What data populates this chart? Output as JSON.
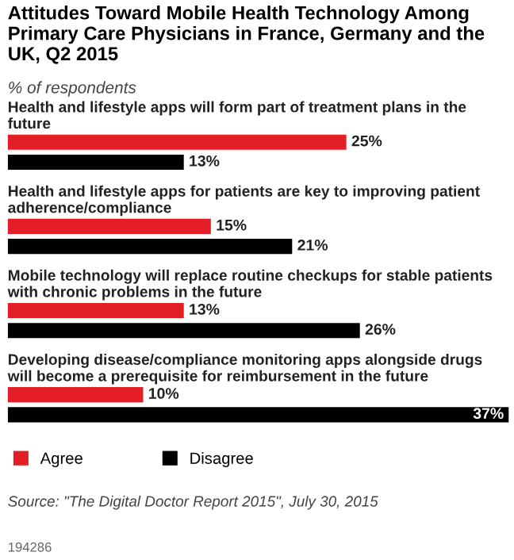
{
  "chart_data": {
    "type": "bar",
    "orientation": "horizontal",
    "title": "Attitudes Toward Mobile Health Technology Among Primary Care Physicians in France, Germany and the UK, Q2 2015",
    "subtitle": "% of respondents",
    "categories": [
      "Health and lifestyle apps will form part of treatment plans in the future",
      "Health and lifestyle apps for patients are key to improving patient adherence/compliance",
      "Mobile technology will replace routine checkups for stable patients with chronic problems in the future",
      "Developing disease/compliance monitoring apps alongside drugs will become a prerequisite for reimbursement in the future"
    ],
    "series": [
      {
        "name": "Agree",
        "color": "#e41e26",
        "values": [
          25,
          15,
          13,
          10
        ],
        "value_labels": [
          "25%",
          "15%",
          "13%",
          "10%"
        ]
      },
      {
        "name": "Disagree",
        "color": "#000000",
        "values": [
          13,
          21,
          26,
          37
        ],
        "value_labels": [
          "13%",
          "21%",
          "26%",
          "37%"
        ]
      }
    ],
    "legend": "bottom left",
    "annotations": [
      "Source: \"The Digital Doctor Report 2015\", July 30, 2015",
      "194286"
    ]
  }
}
